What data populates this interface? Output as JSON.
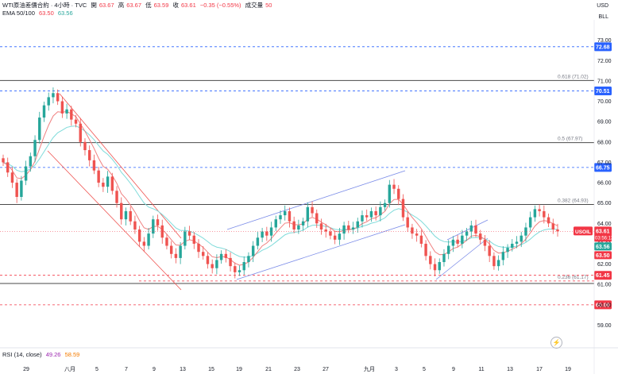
{
  "header": {
    "symbol": "WTI原油差價合約 · 4小時 · TVC",
    "open_label": "開",
    "open": "63.67",
    "high_label": "高",
    "high": "63.67",
    "low_label": "低",
    "low": "63.59",
    "close_label": "收",
    "close": "63.61",
    "change": "−0.35 (−0.55%)",
    "volume_label": "成交量",
    "volume": "50",
    "ema_label": "EMA 50/100",
    "ema50": "63.50",
    "ema100": "63.56"
  },
  "axis": {
    "currency": "USD",
    "unit": "BLL"
  },
  "rsi": {
    "label": "RSI (14, close)",
    "value": "49.26",
    "ma": "58.59"
  },
  "colors": {
    "up": "#26a69a",
    "down": "#ef5350",
    "ema50": "#f08080",
    "ema100": "#7fdbda",
    "channel_blue": "#7b8ce8",
    "channel_red": "#ef5350",
    "dashed_blue": "#2962ff",
    "dashed_red": "#f23645",
    "fib": "#787b86"
  },
  "chart_data": {
    "type": "candlestick",
    "ylim": [
      58.2,
      74.0
    ],
    "yticks": [
      "59.00",
      "60.00",
      "61.00",
      "62.00",
      "63.00",
      "64.00",
      "65.00",
      "66.00",
      "67.00",
      "68.00",
      "69.00",
      "70.00",
      "71.00",
      "72.00",
      "73.00"
    ],
    "xticks": [
      "29",
      "八月",
      "5",
      "7",
      "9",
      "13",
      "15",
      "19",
      "21",
      "23",
      "27",
      "九月",
      "3",
      "5",
      "9",
      "11",
      "13",
      "17",
      "19"
    ],
    "fib_levels": [
      {
        "label": "0.618 (71.02)",
        "value": 71.02
      },
      {
        "label": "0.5 (67.97)",
        "value": 67.97
      },
      {
        "label": "0.382 (64.93)",
        "value": 64.93
      },
      {
        "label": "0.236 (61.17)",
        "value": 61.17
      }
    ],
    "horizontal_lines": [
      {
        "label": "72.68",
        "value": 72.68,
        "style": "dashed",
        "color": "blue"
      },
      {
        "label": "70.51",
        "value": 70.51,
        "style": "dashed",
        "color": "blue"
      },
      {
        "label": "66.75",
        "value": 66.75,
        "style": "dashed",
        "color": "blue"
      },
      {
        "label": "61.45",
        "value": 61.45,
        "style": "dashed",
        "color": "red"
      },
      {
        "label": "60.00",
        "value": 60.0,
        "style": "dashed",
        "color": "red"
      }
    ],
    "price_labels": {
      "last": "63.61",
      "countdown": "03:56:12",
      "ema100": "63.56",
      "ema50": "63.50",
      "symbol": "USOIL"
    },
    "closes": [
      67.0,
      66.5,
      66.0,
      65.3,
      66.1,
      66.8,
      67.3,
      68.1,
      69.2,
      69.8,
      70.2,
      70.4,
      70.0,
      69.4,
      69.6,
      69.1,
      68.9,
      68.0,
      67.6,
      67.1,
      66.6,
      66.0,
      65.8,
      66.3,
      65.6,
      65.0,
      64.2,
      64.6,
      64.1,
      63.7,
      63.1,
      62.9,
      63.5,
      64.2,
      63.9,
      63.3,
      62.9,
      62.5,
      62.3,
      62.9,
      63.6,
      63.4,
      63.0,
      62.6,
      62.4,
      62.0,
      61.8,
      62.2,
      62.5,
      62.3,
      61.9,
      61.6,
      61.7,
      62.1,
      62.4,
      62.9,
      63.3,
      63.6,
      63.4,
      63.8,
      64.2,
      64.4,
      64.6,
      64.1,
      63.7,
      63.9,
      64.1,
      64.8,
      64.5,
      64.0,
      63.7,
      63.6,
      63.4,
      63.2,
      63.5,
      63.9,
      63.7,
      63.8,
      64.1,
      64.4,
      64.3,
      64.6,
      64.4,
      64.8,
      65.0,
      65.9,
      65.7,
      65.2,
      64.3,
      63.8,
      63.5,
      63.4,
      63.0,
      62.4,
      62.0,
      61.7,
      62.1,
      62.5,
      62.9,
      63.2,
      63.0,
      63.4,
      63.6,
      63.9,
      63.5,
      63.2,
      62.9,
      62.4,
      61.9,
      62.2,
      62.6,
      62.8,
      63.0,
      63.1,
      63.4,
      63.8,
      64.3,
      64.7,
      64.6,
      64.3,
      64.0,
      63.7,
      63.61
    ]
  }
}
